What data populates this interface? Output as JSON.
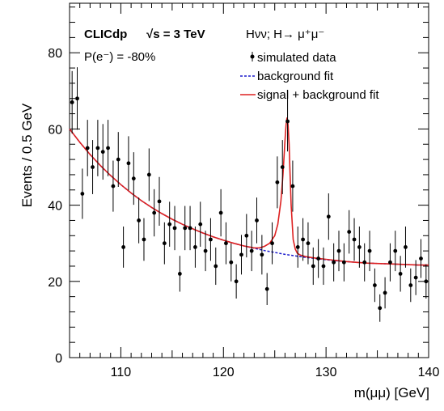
{
  "chart_data": {
    "type": "scatter",
    "xlabel": "m(μμ) [GeV]",
    "ylabel": "Events / 0.5 GeV",
    "xlim": [
      105,
      140
    ],
    "ylim": [
      0,
      93
    ],
    "x_ticks": [
      110,
      120,
      130,
      140
    ],
    "y_ticks": [
      0,
      20,
      40,
      60,
      80
    ],
    "grid": false,
    "annotations": {
      "experiment": "CLICdp",
      "energy": "√s = 3 TeV",
      "process": "Hνν; H→ μ⁺μ⁻",
      "polarization": "P(e⁻) = -80%"
    },
    "legend_position": "top-right",
    "legend": [
      {
        "label": "simulated data",
        "style": "marker",
        "color": "#000000"
      },
      {
        "label": "background fit",
        "style": "dashed",
        "color": "#1a1acc"
      },
      {
        "label": "signal + background fit",
        "style": "solid",
        "color": "#dd2020"
      }
    ],
    "series": [
      {
        "name": "simulated data",
        "x": [
          105.25,
          105.75,
          106.25,
          106.75,
          107.25,
          107.75,
          108.25,
          108.75,
          109.25,
          109.75,
          110.25,
          110.75,
          111.25,
          111.75,
          112.25,
          112.75,
          113.25,
          113.75,
          114.25,
          114.75,
          115.25,
          115.75,
          116.25,
          116.75,
          117.25,
          117.75,
          118.25,
          118.75,
          119.25,
          119.75,
          120.25,
          120.75,
          121.25,
          121.75,
          122.25,
          122.75,
          123.25,
          123.75,
          124.25,
          124.75,
          125.25,
          125.75,
          126.25,
          126.75,
          127.25,
          127.75,
          128.25,
          128.75,
          129.25,
          129.75,
          130.25,
          130.75,
          131.25,
          131.75,
          132.25,
          132.75,
          133.25,
          133.75,
          134.25,
          134.75,
          135.25,
          135.75,
          136.25,
          136.75,
          137.25,
          137.75,
          138.25,
          138.75,
          139.25,
          139.75
        ],
        "y": [
          67,
          68,
          43,
          55,
          50,
          55,
          54,
          55,
          45,
          52,
          29,
          51,
          47,
          36,
          31,
          48,
          38,
          41,
          30,
          35,
          34,
          22,
          34,
          34,
          29,
          35,
          28,
          31,
          24,
          38,
          30,
          25,
          20,
          27,
          32,
          28,
          36,
          27,
          18,
          30,
          46,
          50,
          62,
          45,
          29,
          31,
          30,
          24,
          26,
          24,
          37,
          25,
          28,
          25,
          33,
          31,
          29,
          25,
          28,
          19,
          13,
          17,
          25,
          28,
          22,
          29,
          19,
          21,
          26,
          20
        ],
        "errors": [
          8.2,
          8.2,
          6.6,
          7.4,
          7.1,
          7.4,
          7.3,
          7.4,
          6.7,
          7.2,
          5.4,
          7.1,
          6.9,
          6.0,
          5.6,
          6.9,
          6.2,
          6.4,
          5.5,
          5.9,
          5.8,
          4.7,
          5.8,
          5.8,
          5.4,
          5.9,
          5.3,
          5.6,
          4.9,
          6.2,
          5.5,
          5.0,
          4.5,
          5.2,
          5.7,
          5.3,
          6.0,
          5.2,
          4.2,
          5.5,
          6.8,
          7.1,
          7.9,
          6.7,
          5.4,
          5.6,
          5.5,
          4.9,
          5.1,
          4.9,
          6.1,
          5.0,
          5.3,
          5.0,
          5.7,
          5.6,
          5.4,
          5.0,
          5.3,
          4.4,
          3.6,
          4.1,
          5.0,
          5.3,
          4.7,
          5.4,
          4.4,
          4.6,
          5.1,
          4.5
        ]
      },
      {
        "name": "background fit",
        "x": [
          105,
          106,
          107,
          108,
          109,
          110,
          111,
          112,
          113,
          114,
          115,
          116,
          117,
          118,
          119,
          120,
          121,
          122,
          123,
          124,
          125,
          126,
          127,
          128,
          129,
          130,
          131,
          132,
          133,
          134,
          135,
          136,
          137,
          138,
          139,
          140
        ],
        "y": [
          60.0,
          56.5,
          53.3,
          50.4,
          47.8,
          45.4,
          43.2,
          41.2,
          39.4,
          37.8,
          36.3,
          35.0,
          33.8,
          32.7,
          31.7,
          30.8,
          30.0,
          29.3,
          28.7,
          28.1,
          27.6,
          27.1,
          26.7,
          26.3,
          26.0,
          25.7,
          25.4,
          25.2,
          25.0,
          24.8,
          24.7,
          24.6,
          24.5,
          24.4,
          24.3,
          24.3
        ]
      },
      {
        "name": "signal + background fit",
        "x": [
          105,
          106,
          107,
          108,
          109,
          110,
          111,
          112,
          113,
          114,
          115,
          116,
          117,
          118,
          119,
          120,
          121,
          122,
          123,
          123.5,
          124,
          124.5,
          125,
          125.3,
          125.6,
          125.8,
          126.0,
          126.1,
          126.2,
          126.3,
          126.4,
          126.5,
          126.6,
          126.8,
          127.0,
          127.2,
          127.5,
          128,
          129,
          130,
          131,
          132,
          133,
          134,
          135,
          136,
          137,
          138,
          139,
          140
        ],
        "y": [
          60.0,
          56.5,
          53.3,
          50.4,
          47.8,
          45.4,
          43.2,
          41.2,
          39.4,
          37.8,
          36.3,
          35.0,
          33.8,
          32.7,
          31.7,
          30.8,
          30.0,
          29.3,
          28.8,
          28.8,
          29.2,
          30.0,
          32.0,
          35.0,
          41.0,
          48.0,
          57.0,
          61.0,
          63.0,
          61.0,
          56.0,
          48.0,
          40.0,
          31.0,
          28.5,
          27.4,
          26.9,
          26.5,
          26.1,
          25.8,
          25.5,
          25.2,
          25.0,
          24.8,
          24.7,
          24.6,
          24.5,
          24.4,
          24.3,
          24.3
        ]
      }
    ]
  }
}
